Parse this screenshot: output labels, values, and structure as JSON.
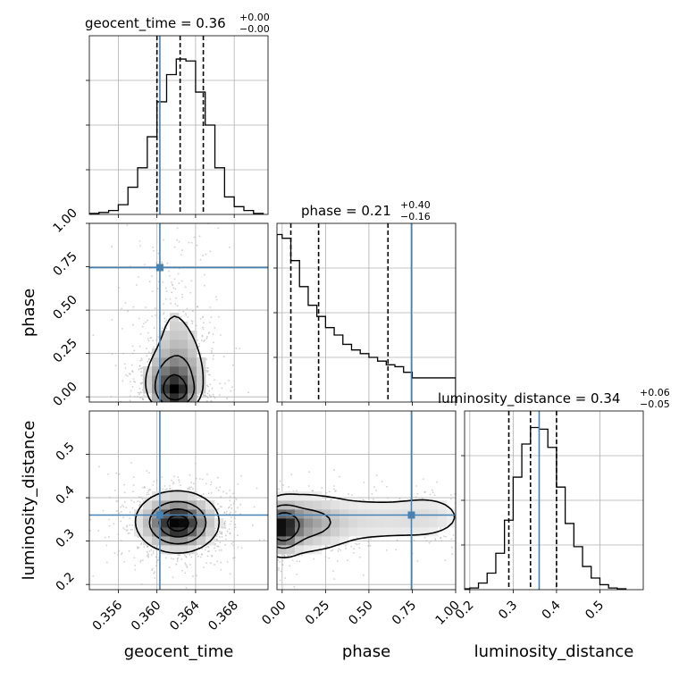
{
  "chart_data": {
    "type": "corner",
    "parameters": [
      "geocent_time",
      "phase",
      "luminosity_distance"
    ],
    "axis_labels": {
      "geocent_time": "geocent_time",
      "phase": "phase",
      "luminosity_distance": "luminosity_distance"
    },
    "truth": {
      "geocent_time": 0.3603,
      "phase": 0.745,
      "luminosity_distance": 0.36
    },
    "colors": {
      "truth": "#4682b4",
      "hist": "#000000",
      "grid": "#b0b0b0",
      "scatter": "#aaaaaa"
    },
    "grid": true,
    "titles": [
      {
        "param": "geocent_time",
        "main": "geocent_time = 0.36",
        "sup": "+0.00",
        "sub": "−0.00"
      },
      {
        "param": "phase",
        "main": "phase = 0.21",
        "sup": "+0.40",
        "sub": "−0.16"
      },
      {
        "param": "luminosity_distance",
        "main": "luminosity_distance = 0.34",
        "sup": "+0.06",
        "sub": "−0.05"
      }
    ],
    "ranges": {
      "geocent_time": [
        0.353,
        0.3715
      ],
      "phase": [
        -0.03,
        1.0
      ],
      "luminosity_distance": [
        0.188,
        0.6
      ]
    },
    "ticks": {
      "geocent_time": [
        0.356,
        0.36,
        0.364,
        0.368
      ],
      "phase": [
        0.0,
        0.25,
        0.5,
        0.75,
        1.0
      ],
      "luminosity_distance": [
        0.2,
        0.3,
        0.4,
        0.5
      ]
    },
    "tick_labels": {
      "geocent_time": [
        "0.356",
        "0.360",
        "0.364",
        "0.368"
      ],
      "phase": [
        "0.00",
        "0.25",
        "0.50",
        "0.75",
        "1.00"
      ],
      "luminosity_distance": [
        "0.2",
        "0.3",
        "0.4",
        "0.5"
      ],
      "phase_row": [
        "0.00",
        "0.25",
        "0.50",
        "0.75",
        "1.00"
      ],
      "luminosity_distance_row": [
        "0.2",
        "0.3",
        "0.4",
        "0.5"
      ]
    },
    "quantiles": {
      "geocent_time": [
        0.36,
        0.3624,
        0.3648
      ],
      "phase": [
        0.05,
        0.21,
        0.61
      ],
      "luminosity_distance": [
        0.29,
        0.34,
        0.4
      ]
    },
    "histograms": {
      "geocent_time": {
        "edges": [
          0.353,
          0.354,
          0.355,
          0.356,
          0.357,
          0.358,
          0.359,
          0.36,
          0.361,
          0.362,
          0.363,
          0.364,
          0.365,
          0.366,
          0.367,
          0.368,
          0.369,
          0.37,
          0.371
        ],
        "counts": [
          0.5,
          1,
          2,
          5,
          14,
          24,
          40,
          58,
          72,
          80,
          79,
          63,
          46,
          24,
          9,
          4,
          2,
          0.5
        ],
        "ymax": 92
      },
      "phase": {
        "edges": [
          -0.03,
          0.0,
          0.05,
          0.1,
          0.15,
          0.2,
          0.25,
          0.3,
          0.35,
          0.4,
          0.45,
          0.5,
          0.55,
          0.6,
          0.65,
          0.7,
          0.75,
          0.8,
          0.85,
          0.9,
          0.95,
          1.0
        ],
        "counts": [
          90,
          88,
          76,
          62,
          52,
          46,
          40,
          36,
          31,
          28,
          26,
          24,
          22,
          20,
          19,
          16,
          13,
          13,
          13,
          13,
          13
        ],
        "ymax": 96
      },
      "luminosity_distance": {
        "edges": [
          0.18,
          0.2,
          0.22,
          0.24,
          0.26,
          0.28,
          0.3,
          0.32,
          0.34,
          0.36,
          0.38,
          0.4,
          0.42,
          0.44,
          0.46,
          0.48,
          0.5,
          0.52,
          0.54,
          0.56
        ],
        "counts": [
          0.5,
          1,
          4,
          10,
          22,
          42,
          68,
          88,
          98,
          97,
          86,
          62,
          40,
          26,
          14,
          7,
          3,
          1,
          0.5
        ],
        "ymax": 108
      }
    },
    "densities": {
      "geocent_time__phase": {
        "blobs": [
          {
            "x": 0.3616,
            "y": 0.08,
            "sx": 0.0017,
            "sy": 0.1,
            "w": 1.0
          },
          {
            "x": 0.362,
            "y": 0.02,
            "sx": 0.0012,
            "sy": 0.05,
            "w": 0.8
          },
          {
            "x": 0.3625,
            "y": 0.22,
            "sx": 0.0018,
            "sy": 0.15,
            "w": 0.4
          },
          {
            "x": 0.3615,
            "y": 0.55,
            "sx": 0.002,
            "sy": 0.25,
            "w": 0.25
          }
        ],
        "levels": [
          0.18,
          0.42,
          0.72
        ]
      },
      "geocent_time__luminosity_distance": {
        "blobs": [
          {
            "x": 0.3622,
            "y": 0.34,
            "sx": 0.0018,
            "sy": 0.03,
            "w": 1.0
          },
          {
            "x": 0.362,
            "y": 0.35,
            "sx": 0.0028,
            "sy": 0.045,
            "w": 0.35
          }
        ],
        "levels": [
          0.12,
          0.35,
          0.62,
          0.85
        ]
      },
      "phase__luminosity_distance": {
        "blobs": [
          {
            "x": 0.0,
            "y": 0.33,
            "sx": 0.06,
            "sy": 0.03,
            "w": 1.0
          },
          {
            "x": 0.12,
            "y": 0.34,
            "sx": 0.14,
            "sy": 0.035,
            "w": 0.5
          },
          {
            "x": 0.5,
            "y": 0.35,
            "sx": 0.3,
            "sy": 0.035,
            "w": 0.2
          },
          {
            "x": 0.85,
            "y": 0.36,
            "sx": 0.12,
            "sy": 0.03,
            "w": 0.12
          }
        ],
        "levels": [
          0.08,
          0.3,
          0.6
        ]
      }
    }
  }
}
